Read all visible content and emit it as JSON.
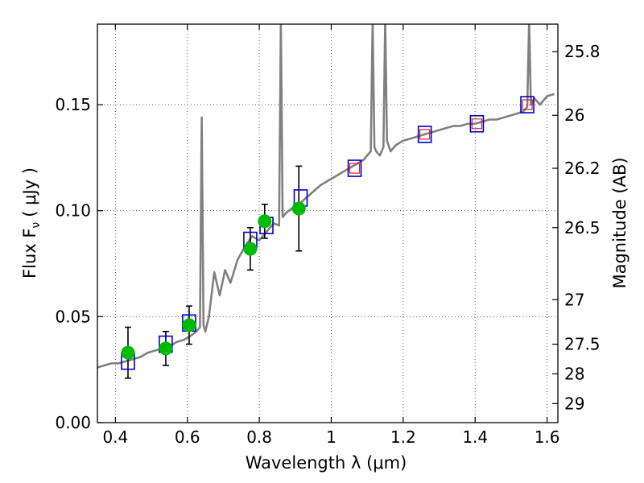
{
  "chart_data": {
    "type": "scatter",
    "title": "",
    "xlabel": "Wavelength  λ (μm)",
    "ylabel": "Flux  F",
    "ylabel_sub": "ν",
    "ylabel_unit": "( μJy )",
    "y2label": "Magnitude (AB)",
    "xlim": [
      0.35,
      1.63
    ],
    "ylim": [
      0.0,
      0.188
    ],
    "grid": true,
    "x_ticks": [
      0.4,
      0.6,
      0.8,
      1.0,
      1.2,
      1.4,
      1.6
    ],
    "x_tick_labels": [
      "0.4",
      "0.6",
      "0.8",
      "1",
      "1.2",
      "1.4",
      "1.6"
    ],
    "y_ticks": [
      0.0,
      0.05,
      0.1,
      0.15
    ],
    "y_tick_labels": [
      "0.00",
      "0.05",
      "0.10",
      "0.15"
    ],
    "y2_ticks": [
      {
        "label": "25.8",
        "flux": 0.175
      },
      {
        "label": "26",
        "flux": 0.145
      },
      {
        "label": "26.2",
        "flux": 0.12
      },
      {
        "label": "26.5",
        "flux": 0.092
      },
      {
        "label": "27",
        "flux": 0.058
      },
      {
        "label": "27.5",
        "flux": 0.037
      },
      {
        "label": "28",
        "flux": 0.023
      },
      {
        "label": "29",
        "flux": 0.009
      }
    ],
    "colors": {
      "spectrum": "#808080",
      "model": "#0000cc",
      "observed": "#00bb00",
      "hst_ir": "#dd2222",
      "errorbar": "#000000"
    },
    "series": [
      {
        "name": "model spectrum",
        "kind": "line",
        "x": [
          0.35,
          0.37,
          0.39,
          0.41,
          0.43,
          0.45,
          0.47,
          0.49,
          0.51,
          0.53,
          0.55,
          0.57,
          0.59,
          0.61,
          0.625,
          0.635,
          0.64,
          0.645,
          0.65,
          0.66,
          0.675,
          0.69,
          0.705,
          0.72,
          0.74,
          0.76,
          0.78,
          0.8,
          0.82,
          0.84,
          0.855,
          0.86,
          0.865,
          0.875,
          0.89,
          0.91,
          0.93,
          0.95,
          0.97,
          0.99,
          1.01,
          1.03,
          1.05,
          1.07,
          1.09,
          1.11,
          1.115,
          1.12,
          1.125,
          1.135,
          1.145,
          1.15,
          1.155,
          1.165,
          1.18,
          1.2,
          1.22,
          1.24,
          1.26,
          1.28,
          1.3,
          1.32,
          1.34,
          1.36,
          1.38,
          1.4,
          1.42,
          1.44,
          1.46,
          1.48,
          1.5,
          1.52,
          1.535,
          1.545,
          1.55,
          1.555,
          1.565,
          1.58,
          1.6,
          1.62
        ],
        "y": [
          0.026,
          0.027,
          0.028,
          0.028,
          0.029,
          0.03,
          0.031,
          0.033,
          0.034,
          0.035,
          0.036,
          0.038,
          0.039,
          0.041,
          0.043,
          0.045,
          0.144,
          0.046,
          0.043,
          0.05,
          0.071,
          0.06,
          0.072,
          0.066,
          0.077,
          0.083,
          0.088,
          0.086,
          0.09,
          0.094,
          0.093,
          0.19,
          0.097,
          0.099,
          0.101,
          0.103,
          0.106,
          0.109,
          0.112,
          0.114,
          0.116,
          0.118,
          0.12,
          0.122,
          0.124,
          0.128,
          0.19,
          0.13,
          0.128,
          0.126,
          0.13,
          0.19,
          0.133,
          0.128,
          0.131,
          0.133,
          0.134,
          0.135,
          0.136,
          0.137,
          0.138,
          0.139,
          0.14,
          0.14,
          0.141,
          0.141,
          0.142,
          0.143,
          0.143,
          0.144,
          0.145,
          0.146,
          0.147,
          0.149,
          0.19,
          0.15,
          0.153,
          0.15,
          0.154,
          0.155
        ]
      },
      {
        "name": "model photometry",
        "kind": "open-square",
        "x": [
          0.435,
          0.54,
          0.605,
          0.775,
          0.82,
          0.915,
          1.065,
          1.26,
          1.405,
          1.545
        ],
        "y": [
          0.029,
          0.037,
          0.047,
          0.086,
          0.093,
          0.106,
          0.12,
          0.136,
          0.141,
          0.15
        ]
      },
      {
        "name": "observed photometry",
        "kind": "filled-circle",
        "x": [
          0.435,
          0.54,
          0.605,
          0.775,
          0.815,
          0.91
        ],
        "y": [
          0.033,
          0.035,
          0.046,
          0.082,
          0.095,
          0.101
        ],
        "yerr": [
          0.012,
          0.008,
          0.009,
          0.01,
          0.008,
          0.02
        ]
      },
      {
        "name": "HST IR photometry",
        "kind": "open-square",
        "x": [
          1.065,
          1.26,
          1.405,
          1.545
        ],
        "y": [
          0.12,
          0.136,
          0.141,
          0.15
        ]
      }
    ]
  }
}
